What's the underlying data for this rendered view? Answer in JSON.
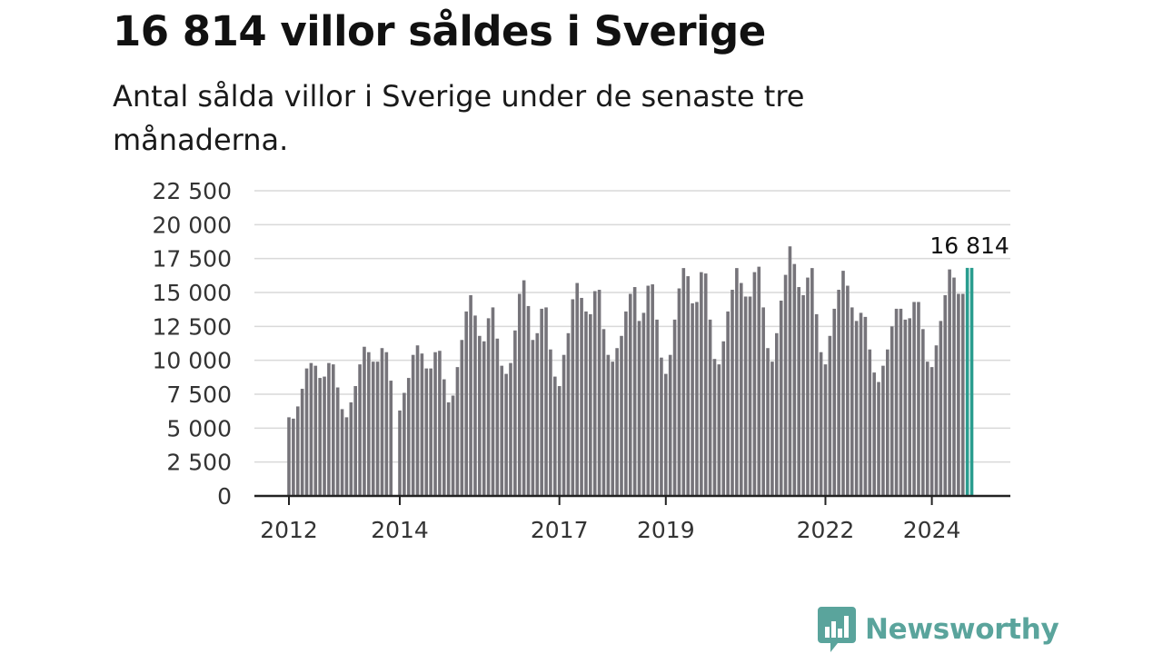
{
  "header": {
    "title": "16 814 villor såldes i Sverige",
    "subtitle": "Antal sålda villor i Sverige under de senaste tre månaderna."
  },
  "branding": {
    "logo_text": "Newsworthy",
    "logo_icon": "bar-chart-badge-icon",
    "logo_color": "#5aa49c"
  },
  "colors": {
    "bar": "#76747a",
    "highlight": "#2a9d8f",
    "grid": "#d9d9d9",
    "axis": "#222222"
  },
  "chart_data": {
    "type": "bar",
    "title": "16 814 villor såldes i Sverige",
    "subtitle": "Antal sålda villor i Sverige under de senaste tre månaderna.",
    "xlabel": "",
    "ylabel": "",
    "ylim": [
      0,
      22500
    ],
    "yticks": [
      0,
      2500,
      5000,
      7500,
      10000,
      12500,
      15000,
      17500,
      20000,
      22500
    ],
    "ytick_labels": [
      "0",
      "2 500",
      "5 000",
      "7 500",
      "10 000",
      "12 500",
      "15 000",
      "17 500",
      "20 000",
      "22 500"
    ],
    "x_start": "2012-01",
    "xticks": [
      "2012-01",
      "2014-01",
      "2017-01",
      "2019-01",
      "2022-01",
      "2024-01"
    ],
    "xtick_labels": [
      "2012",
      "2014",
      "2017",
      "2019",
      "2022",
      "2024"
    ],
    "grid": true,
    "gap_after_month": "2013-12",
    "values": [
      5800,
      5700,
      6600,
      7900,
      9400,
      9800,
      9600,
      8700,
      8800,
      9800,
      9700,
      8000,
      6400,
      5800,
      6900,
      8100,
      9700,
      11000,
      10600,
      9900,
      9900,
      10900,
      10600,
      8500,
      6300,
      7600,
      8700,
      10400,
      11100,
      10500,
      9400,
      9400,
      10600,
      10700,
      8600,
      6900,
      7400,
      9500,
      11500,
      13600,
      14800,
      13300,
      11800,
      11400,
      13100,
      13900,
      11600,
      9600,
      9000,
      9800,
      12200,
      14900,
      15900,
      14000,
      11500,
      12000,
      13800,
      13900,
      10800,
      8800,
      8100,
      10400,
      12000,
      14500,
      15700,
      14600,
      13600,
      13400,
      15100,
      15200,
      12300,
      10400,
      9900,
      10900,
      11800,
      13600,
      14900,
      15400,
      12900,
      13500,
      15500,
      15600,
      13000,
      10200,
      9000,
      10400,
      13000,
      15300,
      16800,
      16200,
      14200,
      14300,
      16500,
      16400,
      13000,
      10100,
      9700,
      11400,
      13600,
      15200,
      16800,
      15700,
      14700,
      14700,
      16500,
      16900,
      13900,
      10900,
      9900,
      12000,
      14400,
      16300,
      18400,
      17100,
      15400,
      14800,
      16100,
      16800,
      13400,
      10600,
      9700,
      11800,
      13800,
      15200,
      16600,
      15500,
      13900,
      12900,
      13500,
      13200,
      10800,
      9100,
      8400,
      9600,
      10800,
      12500,
      13800,
      13800,
      13000,
      13100,
      14300,
      14300,
      12300,
      9900,
      9500,
      11100,
      12900,
      14800,
      16700,
      16100,
      14900,
      14900,
      16814,
      16814
    ],
    "highlight_count": 2,
    "annotation": {
      "text": "16 814",
      "value": 16814
    }
  }
}
